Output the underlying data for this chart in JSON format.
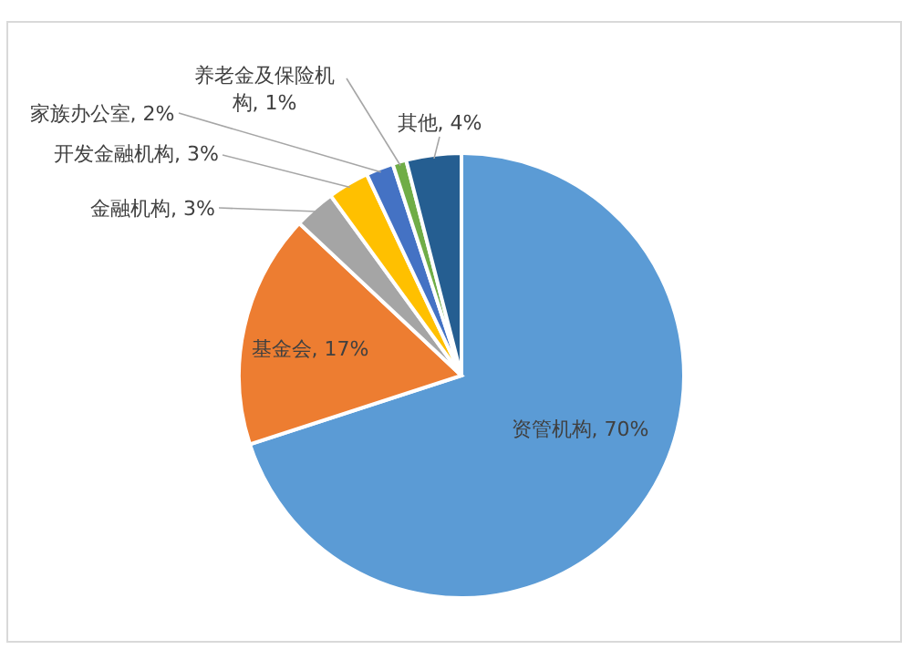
{
  "chart_data": {
    "type": "pie",
    "categories": [
      "资管机构",
      "基金会",
      "金融机构",
      "开发金融机构",
      "家族办公室",
      "养老金及保险机构",
      "其他"
    ],
    "values": [
      70,
      17,
      3,
      3,
      2,
      1,
      4
    ],
    "value_labels": [
      "70%",
      "17%",
      "3%",
      "3%",
      "2%",
      "1%",
      "4%"
    ],
    "colors": [
      "#5b9bd5",
      "#ed7d31",
      "#a5a5a5",
      "#ffc000",
      "#4472c4",
      "#70ad47",
      "#255e91"
    ]
  }
}
